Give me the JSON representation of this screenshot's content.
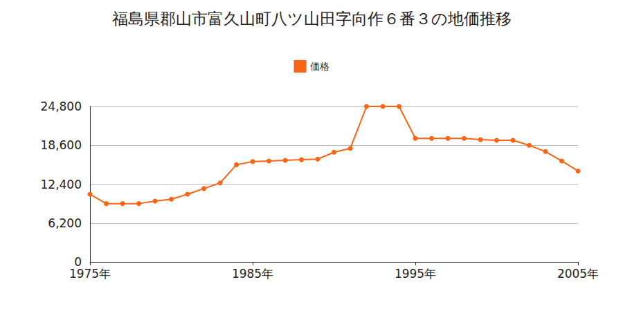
{
  "chart_data": {
    "type": "line",
    "title": "福島県郡山市富久山町八ツ山田字向作６番３の地価推移",
    "x": [
      1975,
      1976,
      1977,
      1978,
      1979,
      1980,
      1981,
      1982,
      1983,
      1984,
      1985,
      1986,
      1987,
      1988,
      1989,
      1990,
      1991,
      1992,
      1993,
      1994,
      1995,
      1996,
      1997,
      1998,
      1999,
      2000,
      2001,
      2002,
      2003,
      2004,
      2005
    ],
    "series": [
      {
        "name": "価格",
        "color": "#fa6414",
        "marker": "circle",
        "line_style": "solid",
        "values": [
          10800,
          9300,
          9300,
          9300,
          9700,
          10000,
          10800,
          11700,
          12600,
          15500,
          16000,
          16100,
          16200,
          16300,
          16400,
          17500,
          18100,
          24800,
          24800,
          24800,
          19700,
          19700,
          19700,
          19700,
          19500,
          19400,
          19400,
          18600,
          17600,
          16100,
          14500
        ]
      }
    ],
    "xlim": [
      1975,
      2005
    ],
    "xticks": [
      {
        "value": 1975,
        "label": "1975年"
      },
      {
        "value": 1985,
        "label": "1985年"
      },
      {
        "value": 1995,
        "label": "1995年"
      },
      {
        "value": 2005,
        "label": "2005年"
      }
    ],
    "ylim": [
      0,
      24800
    ],
    "yticks": [
      0,
      {
        "value": 6200,
        "label": "6,200"
      },
      {
        "value": 12400,
        "label": "12,400"
      },
      {
        "value": 18600,
        "label": "18,600"
      },
      {
        "value": 24800,
        "label": "24,800"
      }
    ],
    "grid": true,
    "legend": "top"
  }
}
